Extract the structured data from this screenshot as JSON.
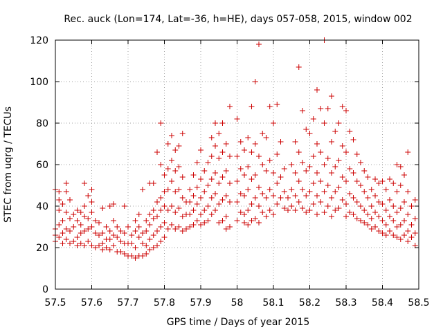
{
  "chart_data": {
    "type": "scatter",
    "title": "Rec. auck (Lon=174, Lat=-36, h=HE), days 057-058, 2015, window 002",
    "xlabel": "GPS time / Days of year 2015",
    "ylabel": "STEC from uqrg / TECUs",
    "xlim": [
      57.5,
      58.5
    ],
    "ylim": [
      0,
      120
    ],
    "xticks": [
      "57.5",
      "57.6",
      "57.7",
      "57.8",
      "57.9",
      "58",
      "58.1",
      "58.2",
      "58.3",
      "58.4",
      "58.5"
    ],
    "yticks": [
      "0",
      "20",
      "40",
      "60",
      "80",
      "100",
      "120"
    ],
    "grid": true,
    "marker": "+",
    "color": "#cc0000",
    "points": [
      [
        57.5,
        48
      ],
      [
        57.5,
        29
      ],
      [
        57.5,
        26
      ],
      [
        57.5,
        23
      ],
      [
        57.51,
        47
      ],
      [
        57.51,
        43
      ],
      [
        57.51,
        38
      ],
      [
        57.51,
        31
      ],
      [
        57.51,
        25
      ],
      [
        57.52,
        41
      ],
      [
        57.52,
        33
      ],
      [
        57.52,
        27
      ],
      [
        57.52,
        22
      ],
      [
        57.53,
        51
      ],
      [
        57.53,
        47
      ],
      [
        57.53,
        37
      ],
      [
        57.53,
        29
      ],
      [
        57.53,
        24
      ],
      [
        57.54,
        43
      ],
      [
        57.54,
        34
      ],
      [
        57.54,
        28
      ],
      [
        57.54,
        22
      ],
      [
        57.55,
        36
      ],
      [
        57.55,
        30
      ],
      [
        57.55,
        23
      ],
      [
        57.56,
        38
      ],
      [
        57.56,
        33
      ],
      [
        57.56,
        25
      ],
      [
        57.56,
        21
      ],
      [
        57.57,
        37
      ],
      [
        57.57,
        31
      ],
      [
        57.57,
        27
      ],
      [
        57.57,
        22
      ],
      [
        57.58,
        51
      ],
      [
        57.58,
        40
      ],
      [
        57.58,
        35
      ],
      [
        57.58,
        28
      ],
      [
        57.58,
        21
      ],
      [
        57.59,
        45
      ],
      [
        57.59,
        34
      ],
      [
        57.59,
        29
      ],
      [
        57.59,
        23
      ],
      [
        57.6,
        48
      ],
      [
        57.6,
        42
      ],
      [
        57.6,
        37
      ],
      [
        57.6,
        30
      ],
      [
        57.6,
        21
      ],
      [
        57.61,
        33
      ],
      [
        57.61,
        27
      ],
      [
        57.61,
        20
      ],
      [
        57.62,
        32
      ],
      [
        57.62,
        26
      ],
      [
        57.62,
        21
      ],
      [
        57.63,
        39
      ],
      [
        57.63,
        27
      ],
      [
        57.63,
        22
      ],
      [
        57.63,
        19
      ],
      [
        57.64,
        30
      ],
      [
        57.64,
        24
      ],
      [
        57.64,
        20
      ],
      [
        57.65,
        40
      ],
      [
        57.65,
        28
      ],
      [
        57.65,
        24
      ],
      [
        57.65,
        19
      ],
      [
        57.66,
        41
      ],
      [
        57.66,
        33
      ],
      [
        57.66,
        26
      ],
      [
        57.66,
        21
      ],
      [
        57.67,
        30
      ],
      [
        57.67,
        25
      ],
      [
        57.67,
        18
      ],
      [
        57.68,
        28
      ],
      [
        57.68,
        23
      ],
      [
        57.68,
        18
      ],
      [
        57.69,
        40
      ],
      [
        57.69,
        27
      ],
      [
        57.69,
        22
      ],
      [
        57.69,
        17
      ],
      [
        57.7,
        30
      ],
      [
        57.7,
        22
      ],
      [
        57.7,
        16
      ],
      [
        57.71,
        26
      ],
      [
        57.71,
        22
      ],
      [
        57.71,
        16
      ],
      [
        57.72,
        33
      ],
      [
        57.72,
        28
      ],
      [
        57.72,
        20
      ],
      [
        57.72,
        15
      ],
      [
        57.73,
        36
      ],
      [
        57.73,
        30
      ],
      [
        57.73,
        25
      ],
      [
        57.73,
        16
      ],
      [
        57.74,
        48
      ],
      [
        57.74,
        27
      ],
      [
        57.74,
        22
      ],
      [
        57.74,
        16
      ],
      [
        57.75,
        33
      ],
      [
        57.75,
        28
      ],
      [
        57.75,
        21
      ],
      [
        57.75,
        17
      ],
      [
        57.76,
        51
      ],
      [
        57.76,
        36
      ],
      [
        57.76,
        31
      ],
      [
        57.76,
        24
      ],
      [
        57.76,
        19
      ],
      [
        57.77,
        51
      ],
      [
        57.77,
        38
      ],
      [
        57.77,
        34
      ],
      [
        57.77,
        26
      ],
      [
        57.77,
        20
      ],
      [
        57.78,
        66
      ],
      [
        57.78,
        42
      ],
      [
        57.78,
        35
      ],
      [
        57.78,
        28
      ],
      [
        57.78,
        21
      ],
      [
        57.79,
        80
      ],
      [
        57.79,
        60
      ],
      [
        57.79,
        44
      ],
      [
        57.79,
        38
      ],
      [
        57.79,
        30
      ],
      [
        57.79,
        23
      ],
      [
        57.8,
        55
      ],
      [
        57.8,
        47
      ],
      [
        57.8,
        40
      ],
      [
        57.8,
        32
      ],
      [
        57.8,
        25
      ],
      [
        57.81,
        70
      ],
      [
        57.81,
        58
      ],
      [
        57.81,
        48
      ],
      [
        57.81,
        38
      ],
      [
        57.81,
        29
      ],
      [
        57.82,
        74
      ],
      [
        57.82,
        62
      ],
      [
        57.82,
        52
      ],
      [
        57.82,
        40
      ],
      [
        57.82,
        31
      ],
      [
        57.83,
        67
      ],
      [
        57.83,
        57
      ],
      [
        57.83,
        47
      ],
      [
        57.83,
        37
      ],
      [
        57.83,
        29
      ],
      [
        57.84,
        69
      ],
      [
        57.84,
        59
      ],
      [
        57.84,
        48
      ],
      [
        57.84,
        39
      ],
      [
        57.84,
        30
      ],
      [
        57.85,
        75
      ],
      [
        57.85,
        54
      ],
      [
        57.85,
        44
      ],
      [
        57.85,
        35
      ],
      [
        57.85,
        28
      ],
      [
        57.86,
        42
      ],
      [
        57.86,
        36
      ],
      [
        57.86,
        29
      ],
      [
        57.87,
        48
      ],
      [
        57.87,
        42
      ],
      [
        57.87,
        36
      ],
      [
        57.87,
        30
      ],
      [
        57.88,
        55
      ],
      [
        57.88,
        45
      ],
      [
        57.88,
        38
      ],
      [
        57.88,
        31
      ],
      [
        57.89,
        61
      ],
      [
        57.89,
        49
      ],
      [
        57.89,
        41
      ],
      [
        57.89,
        33
      ],
      [
        57.9,
        67
      ],
      [
        57.9,
        53
      ],
      [
        57.9,
        44
      ],
      [
        57.9,
        36
      ],
      [
        57.9,
        31
      ],
      [
        57.91,
        57
      ],
      [
        57.91,
        47
      ],
      [
        57.91,
        38
      ],
      [
        57.91,
        32
      ],
      [
        57.92,
        61
      ],
      [
        57.92,
        50
      ],
      [
        57.92,
        40
      ],
      [
        57.92,
        33
      ],
      [
        57.93,
        73
      ],
      [
        57.93,
        64
      ],
      [
        57.93,
        53
      ],
      [
        57.93,
        44
      ],
      [
        57.93,
        36
      ],
      [
        57.94,
        80
      ],
      [
        57.94,
        69
      ],
      [
        57.94,
        56
      ],
      [
        57.94,
        46
      ],
      [
        57.94,
        38
      ],
      [
        57.95,
        75
      ],
      [
        57.95,
        63
      ],
      [
        57.95,
        51
      ],
      [
        57.95,
        41
      ],
      [
        57.95,
        32
      ],
      [
        57.96,
        80
      ],
      [
        57.96,
        66
      ],
      [
        57.96,
        54
      ],
      [
        57.96,
        43
      ],
      [
        57.96,
        33
      ],
      [
        57.97,
        70
      ],
      [
        57.97,
        57
      ],
      [
        57.97,
        45
      ],
      [
        57.97,
        35
      ],
      [
        57.97,
        29
      ],
      [
        57.98,
        88
      ],
      [
        57.98,
        64
      ],
      [
        57.98,
        51
      ],
      [
        57.98,
        42
      ],
      [
        57.98,
        30
      ],
      [
        58.0,
        82
      ],
      [
        58.0,
        64
      ],
      [
        58.0,
        52
      ],
      [
        58.0,
        42
      ],
      [
        58.0,
        33
      ],
      [
        58.01,
        71
      ],
      [
        58.01,
        58
      ],
      [
        58.01,
        46
      ],
      [
        58.01,
        37
      ],
      [
        58.02,
        67
      ],
      [
        58.02,
        55
      ],
      [
        58.02,
        45
      ],
      [
        58.02,
        36
      ],
      [
        58.02,
        32
      ],
      [
        58.03,
        73
      ],
      [
        58.03,
        59
      ],
      [
        58.03,
        48
      ],
      [
        58.03,
        38
      ],
      [
        58.03,
        31
      ],
      [
        58.04,
        88
      ],
      [
        58.04,
        66
      ],
      [
        58.04,
        53
      ],
      [
        58.04,
        41
      ],
      [
        58.04,
        33
      ],
      [
        58.05,
        100
      ],
      [
        58.05,
        70
      ],
      [
        58.05,
        55
      ],
      [
        58.05,
        44
      ],
      [
        58.05,
        34
      ],
      [
        58.06,
        118
      ],
      [
        58.06,
        64
      ],
      [
        58.06,
        49
      ],
      [
        58.06,
        40
      ],
      [
        58.06,
        32
      ],
      [
        58.07,
        75
      ],
      [
        58.07,
        60
      ],
      [
        58.07,
        46
      ],
      [
        58.07,
        37
      ],
      [
        58.08,
        73
      ],
      [
        58.08,
        57
      ],
      [
        58.08,
        44
      ],
      [
        58.08,
        35
      ],
      [
        58.09,
        88
      ],
      [
        58.09,
        62
      ],
      [
        58.09,
        48
      ],
      [
        58.09,
        38
      ],
      [
        58.1,
        80
      ],
      [
        58.1,
        56
      ],
      [
        58.1,
        45
      ],
      [
        58.1,
        36
      ],
      [
        58.11,
        89
      ],
      [
        58.11,
        65
      ],
      [
        58.11,
        51
      ],
      [
        58.11,
        41
      ],
      [
        58.12,
        71
      ],
      [
        58.12,
        54
      ],
      [
        58.12,
        44
      ],
      [
        58.13,
        58
      ],
      [
        58.13,
        47
      ],
      [
        58.13,
        39
      ],
      [
        58.14,
        44
      ],
      [
        58.14,
        38
      ],
      [
        58.15,
        60
      ],
      [
        58.15,
        48
      ],
      [
        58.15,
        40
      ],
      [
        58.16,
        71
      ],
      [
        58.16,
        56
      ],
      [
        58.16,
        45
      ],
      [
        58.16,
        38
      ],
      [
        58.17,
        107
      ],
      [
        58.17,
        66
      ],
      [
        58.17,
        52
      ],
      [
        58.17,
        42
      ],
      [
        58.18,
        86
      ],
      [
        58.18,
        61
      ],
      [
        58.18,
        48
      ],
      [
        58.18,
        39
      ],
      [
        58.19,
        77
      ],
      [
        58.19,
        57
      ],
      [
        58.19,
        45
      ],
      [
        58.19,
        37
      ],
      [
        58.2,
        75
      ],
      [
        58.2,
        59
      ],
      [
        58.2,
        47
      ],
      [
        58.2,
        38
      ],
      [
        58.21,
        82
      ],
      [
        58.21,
        64
      ],
      [
        58.21,
        51
      ],
      [
        58.21,
        41
      ],
      [
        58.22,
        96
      ],
      [
        58.22,
        70
      ],
      [
        58.22,
        56
      ],
      [
        58.22,
        45
      ],
      [
        58.22,
        36
      ],
      [
        58.23,
        87
      ],
      [
        58.23,
        66
      ],
      [
        58.23,
        52
      ],
      [
        58.23,
        42
      ],
      [
        58.24,
        120
      ],
      [
        58.24,
        80
      ],
      [
        58.24,
        60
      ],
      [
        58.24,
        47
      ],
      [
        58.24,
        37
      ],
      [
        58.25,
        87
      ],
      [
        58.25,
        63
      ],
      [
        58.25,
        50
      ],
      [
        58.25,
        40
      ],
      [
        58.26,
        93
      ],
      [
        58.26,
        71
      ],
      [
        58.26,
        56
      ],
      [
        58.26,
        44
      ],
      [
        58.26,
        35
      ],
      [
        58.27,
        76
      ],
      [
        58.27,
        59
      ],
      [
        58.27,
        47
      ],
      [
        58.27,
        38
      ],
      [
        58.28,
        80
      ],
      [
        58.28,
        62
      ],
      [
        58.28,
        49
      ],
      [
        58.28,
        39
      ],
      [
        58.29,
        88
      ],
      [
        58.29,
        69
      ],
      [
        58.29,
        54
      ],
      [
        58.29,
        43
      ],
      [
        58.3,
        86
      ],
      [
        58.3,
        66
      ],
      [
        58.3,
        52
      ],
      [
        58.3,
        41
      ],
      [
        58.3,
        35
      ],
      [
        58.31,
        76
      ],
      [
        58.31,
        58
      ],
      [
        58.31,
        46
      ],
      [
        58.31,
        37
      ],
      [
        58.32,
        72
      ],
      [
        58.32,
        56
      ],
      [
        58.32,
        44
      ],
      [
        58.32,
        36
      ],
      [
        58.33,
        65
      ],
      [
        58.33,
        52
      ],
      [
        58.33,
        42
      ],
      [
        58.33,
        34
      ],
      [
        58.34,
        61
      ],
      [
        58.34,
        50
      ],
      [
        58.34,
        40
      ],
      [
        58.34,
        33
      ],
      [
        58.35,
        57
      ],
      [
        58.35,
        47
      ],
      [
        58.35,
        38
      ],
      [
        58.35,
        32
      ],
      [
        58.36,
        54
      ],
      [
        58.36,
        44
      ],
      [
        58.36,
        36
      ],
      [
        58.36,
        31
      ],
      [
        58.37,
        48
      ],
      [
        58.37,
        40
      ],
      [
        58.37,
        34
      ],
      [
        58.37,
        29
      ],
      [
        58.38,
        53
      ],
      [
        58.38,
        45
      ],
      [
        58.38,
        37
      ],
      [
        58.38,
        30
      ],
      [
        58.39,
        51
      ],
      [
        58.39,
        42
      ],
      [
        58.39,
        35
      ],
      [
        58.39,
        28
      ],
      [
        58.4,
        52
      ],
      [
        58.4,
        41
      ],
      [
        58.4,
        33
      ],
      [
        58.4,
        27
      ],
      [
        58.41,
        48
      ],
      [
        58.41,
        38
      ],
      [
        58.41,
        31
      ],
      [
        58.41,
        26
      ],
      [
        58.42,
        53
      ],
      [
        58.42,
        43
      ],
      [
        58.42,
        35
      ],
      [
        58.42,
        28
      ],
      [
        58.43,
        51
      ],
      [
        58.43,
        40
      ],
      [
        58.43,
        33
      ],
      [
        58.43,
        26
      ],
      [
        58.44,
        60
      ],
      [
        58.44,
        47
      ],
      [
        58.44,
        37
      ],
      [
        58.44,
        30
      ],
      [
        58.44,
        25
      ],
      [
        58.45,
        59
      ],
      [
        58.45,
        50
      ],
      [
        58.45,
        39
      ],
      [
        58.45,
        31
      ],
      [
        58.45,
        24
      ],
      [
        58.46,
        55
      ],
      [
        58.46,
        42
      ],
      [
        58.46,
        33
      ],
      [
        58.46,
        26
      ],
      [
        58.47,
        66
      ],
      [
        58.47,
        47
      ],
      [
        58.47,
        36
      ],
      [
        58.47,
        28
      ],
      [
        58.47,
        23
      ],
      [
        58.48,
        40
      ],
      [
        58.48,
        31
      ],
      [
        58.48,
        25
      ],
      [
        58.49,
        43
      ],
      [
        58.49,
        34
      ],
      [
        58.49,
        27
      ],
      [
        58.49,
        21
      ]
    ]
  }
}
